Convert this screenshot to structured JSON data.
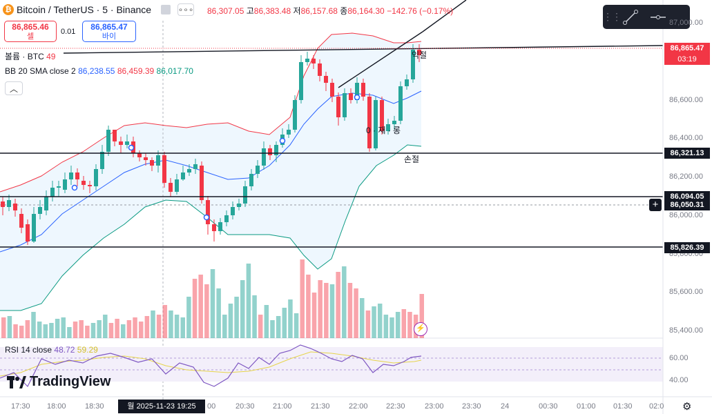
{
  "header": {
    "coin_glyph": "₿",
    "title": "Bitcoin / TetherUS · 5 · Binance",
    "more_glyph": "∘∘∘"
  },
  "ohlc": {
    "open_value": "86,307.05",
    "high_label": "고",
    "high_value": "86,383.48",
    "low_label": "저",
    "low_value": "86,157.68",
    "close_label": "종",
    "close_value": "86,164.30",
    "change": "−142.76 (−0.17%)"
  },
  "trade": {
    "sell_price": "86,865.46",
    "sell_label": "셀",
    "spread": "0.01",
    "buy_price": "86,865.47",
    "buy_label": "바이"
  },
  "legend": {
    "volume_label": "볼륨 · BTC",
    "volume_value": "49",
    "bb_label": "BB 20 SMA close 2",
    "bb_mid": "86,238.55",
    "bb_upper": "86,459.39",
    "bb_lower": "86,017.70",
    "rsi_label": "RSI 14 close",
    "rsi_value": "48.72",
    "rsi_ma": "59.29"
  },
  "toolbar": {
    "grip": "⋮⋮",
    "items": [
      "trend-line-tool-icon",
      "horizontal-ray-tool-icon"
    ]
  },
  "price_axis": {
    "ticks": [
      "87,000.00",
      "86,600.00",
      "86,400.00",
      "86,200.00",
      "86,000.00",
      "85,800.00",
      "85,600.00",
      "85,400.00"
    ],
    "last_price": "86,865.47",
    "countdown": "03:19",
    "level_1": "86,321.13",
    "level_2": "86,094.05",
    "level_3": "86,050.31",
    "level_4": "85,826.39"
  },
  "rsi_axis": {
    "ticks": [
      "60.00",
      "40.00"
    ]
  },
  "time_axis": {
    "ticks": [
      "17:30",
      "18:00",
      "18:30",
      "20:00",
      "20:30",
      "21:00",
      "21:30",
      "22:00",
      "22:30",
      "23:00",
      "23:30",
      "24",
      "00:30",
      "01:00",
      "01:30",
      "02:0"
    ],
    "crosshair_date": "월 2025-11-23   19:25"
  },
  "annotations": {
    "a1": "익절",
    "a2": "손절",
    "a3": "0 · 재 · 롱"
  },
  "logo": {
    "text": "TradingView"
  },
  "colors": {
    "up": "#26a69a",
    "down": "#f23645",
    "bb_mid": "#2962ff",
    "bb_upper": "#f23645",
    "bb_lower": "#089981",
    "rsi": "#7e57c2",
    "rsi_ma": "#e6d44a"
  }
}
